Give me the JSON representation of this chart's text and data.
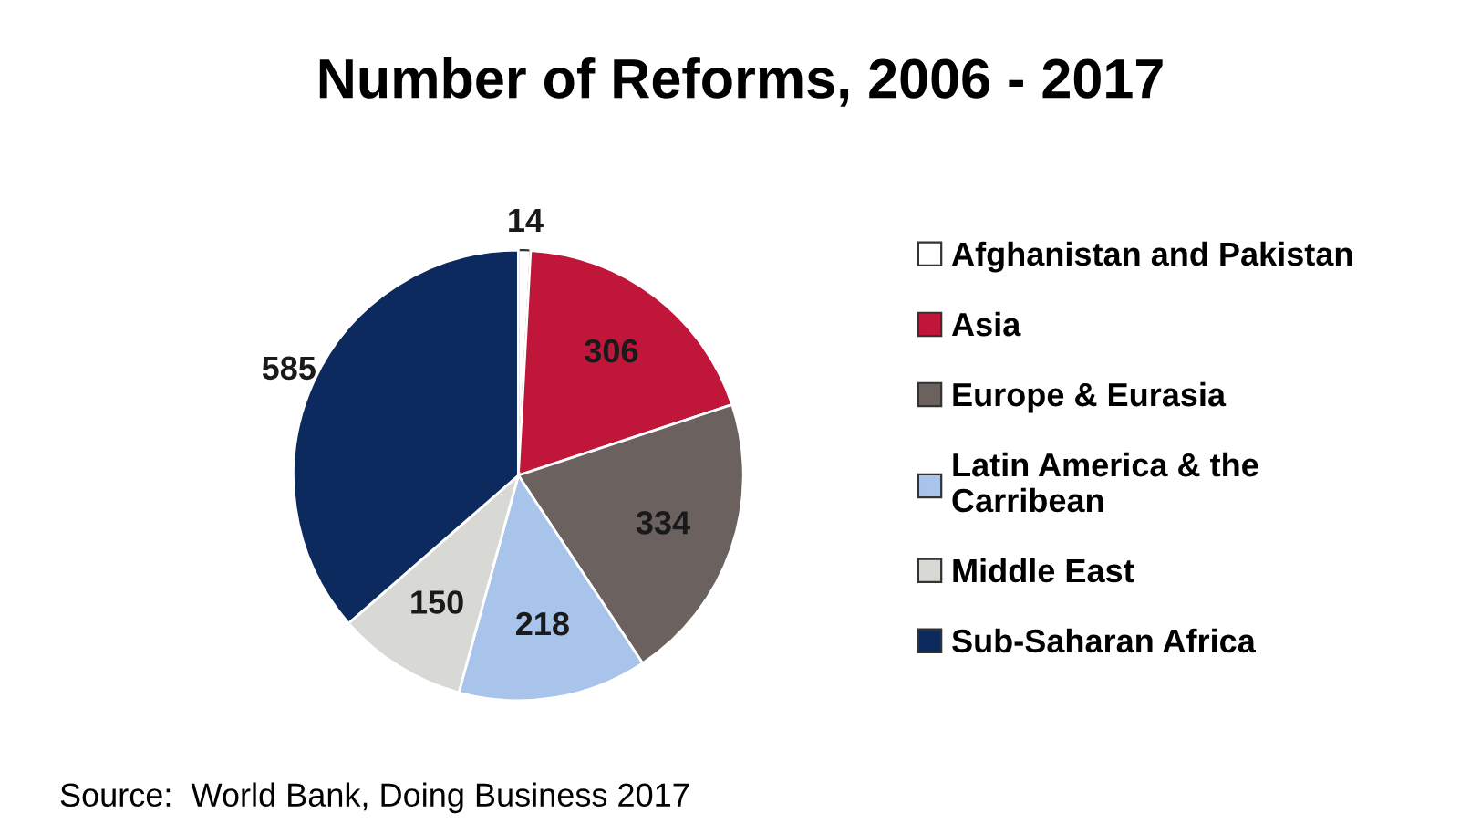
{
  "chart_data": {
    "type": "pie",
    "title": "Number of Reforms, 2006 - 2017",
    "categories": [
      "Afghanistan and Pakistan",
      "Asia",
      "Europe & Eurasia",
      "Latin America & the Carribean",
      "Middle East",
      "Sub-Saharan Africa"
    ],
    "values": [
      14,
      306,
      334,
      218,
      150,
      585
    ],
    "colors": [
      "#ffffff",
      "#c0163a",
      "#6b6260",
      "#a8c4ea",
      "#d8d8d4",
      "#0d2a5e"
    ],
    "data_labels": true,
    "legend": "right",
    "annotations": [
      "Source:  World Bank, Doing Business 2017"
    ]
  }
}
